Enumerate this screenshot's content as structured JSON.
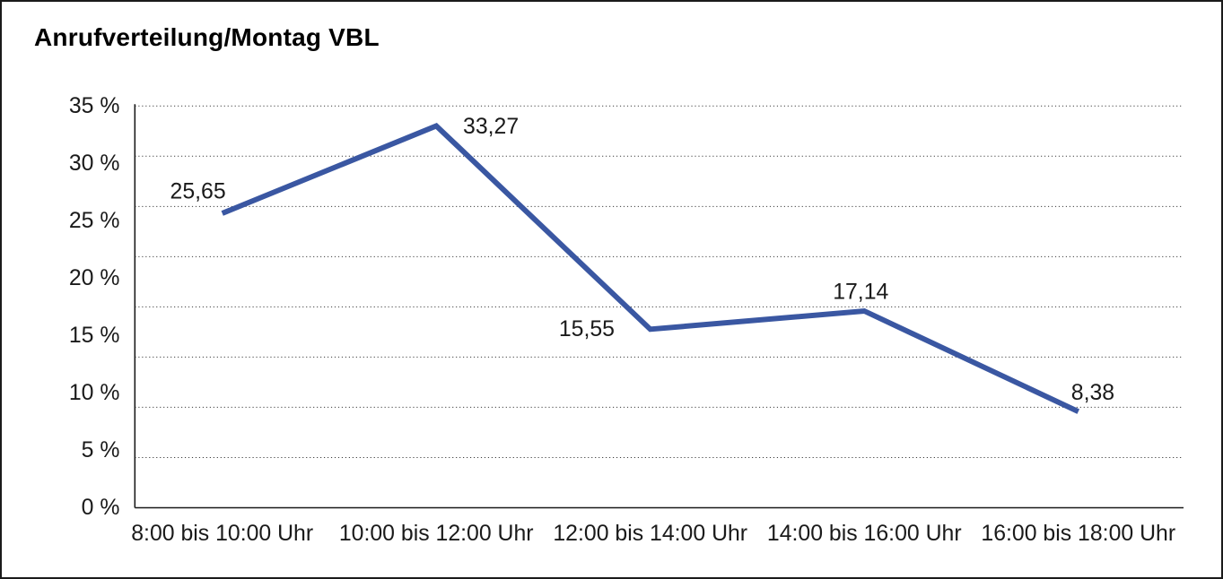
{
  "chart_data": {
    "type": "line",
    "title": "Anrufverteilung/Montag VBL",
    "categories": [
      "8:00 bis 10:00 Uhr",
      "10:00 bis 12:00 Uhr",
      "12:00 bis 14:00 Uhr",
      "14:00 bis 16:00 Uhr",
      "16:00 bis 18:00 Uhr"
    ],
    "values": [
      25.65,
      33.27,
      15.55,
      17.14,
      8.38
    ],
    "value_labels": [
      "25,65",
      "33,27",
      "15,55",
      "17,14",
      "8,38"
    ],
    "xlabel": "",
    "ylabel": "",
    "ylim": [
      0,
      35
    ],
    "y_tick_values": [
      0,
      5,
      10,
      15,
      20,
      25,
      30,
      35
    ],
    "y_tick_labels": [
      "0 %",
      "5 %",
      "10 %",
      "15 %",
      "20 %",
      "25 %",
      "30 %",
      "35 %"
    ],
    "grid": "horizontal-dotted",
    "grid_steps": 8,
    "legend": "none",
    "line_color": "#3A57A2",
    "label_placements": [
      "above-left",
      "right",
      "left",
      "above",
      "above-right"
    ]
  }
}
